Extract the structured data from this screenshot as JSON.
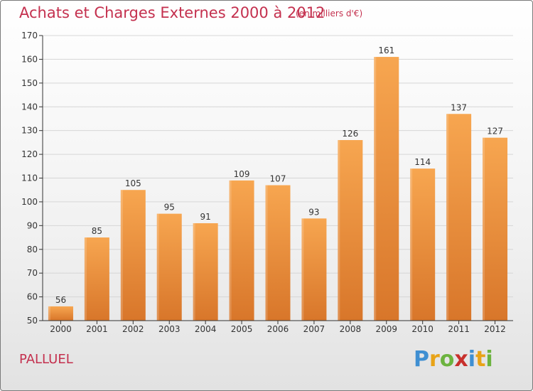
{
  "header": {
    "title": "Achats et Charges Externes 2000 à 2012",
    "subtitle": "(en milliers d'€)"
  },
  "footer": {
    "commune": "PALLUEL",
    "logo": {
      "text": "Proxiti",
      "letter_colors": [
        "#3f8fd2",
        "#e8a317",
        "#6cb33f",
        "#c8302c",
        "#3f8fd2",
        "#e8a317",
        "#6cb33f"
      ]
    }
  },
  "colors": {
    "title": "#c4304e",
    "bar_top": "#f7a650",
    "bar_bottom": "#d8762a",
    "axis": "#333333",
    "grid": "#d6d6d6"
  },
  "chart_data": {
    "type": "bar",
    "categories": [
      "2000",
      "2001",
      "2002",
      "2003",
      "2004",
      "2005",
      "2006",
      "2007",
      "2008",
      "2009",
      "2010",
      "2011",
      "2012"
    ],
    "values": [
      56,
      85,
      105,
      95,
      91,
      109,
      107,
      93,
      126,
      161,
      114,
      137,
      127
    ],
    "data_labels": [
      "56",
      "85",
      "105",
      "95",
      "91",
      "109",
      "107",
      "93",
      "126",
      "161",
      "114",
      "137",
      "127"
    ],
    "ylim": [
      50,
      170
    ],
    "yticks": [
      "50",
      "60",
      "70",
      "80",
      "90",
      "100",
      "110",
      "120",
      "130",
      "140",
      "150",
      "160",
      "170"
    ],
    "grid": true,
    "legend": "none"
  }
}
